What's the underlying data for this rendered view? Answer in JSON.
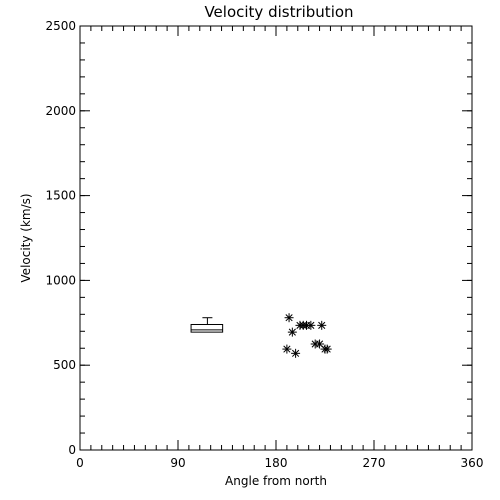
{
  "chart_data": {
    "type": "scatter",
    "title": "Velocity distribution",
    "xlabel": "Angle from north",
    "ylabel": "Velocity (km/s)",
    "xlim": [
      0,
      360
    ],
    "ylim": [
      0,
      2500
    ],
    "xticks": [
      0,
      90,
      180,
      270,
      360
    ],
    "xtick_labels": [
      "0",
      "90",
      "180",
      "270",
      "360"
    ],
    "yticks": [
      0,
      500,
      1000,
      1500,
      2000,
      2500
    ],
    "ytick_labels": [
      "0",
      "500",
      "1000",
      "1500",
      "2000",
      "2500"
    ],
    "x_minor_step": 10,
    "y_minor_step": 100,
    "marker": "asterisk",
    "points": [
      {
        "x": 192,
        "y": 780
      },
      {
        "x": 195,
        "y": 695
      },
      {
        "x": 202,
        "y": 735
      },
      {
        "x": 205,
        "y": 735
      },
      {
        "x": 208,
        "y": 735
      },
      {
        "x": 212,
        "y": 735
      },
      {
        "x": 222,
        "y": 735
      },
      {
        "x": 190,
        "y": 595
      },
      {
        "x": 198,
        "y": 570
      },
      {
        "x": 216,
        "y": 625
      },
      {
        "x": 220,
        "y": 625
      },
      {
        "x": 225,
        "y": 595
      },
      {
        "x": 227,
        "y": 595
      }
    ],
    "boxplot": {
      "x_start": 102,
      "x_end": 131,
      "q1": 695,
      "q3": 740,
      "median": 708,
      "whisker_high": 780,
      "whisker_x": 117
    },
    "grid": false,
    "colors": {
      "axis": "#000000",
      "marker": "#000000",
      "background": "#ffffff"
    }
  }
}
